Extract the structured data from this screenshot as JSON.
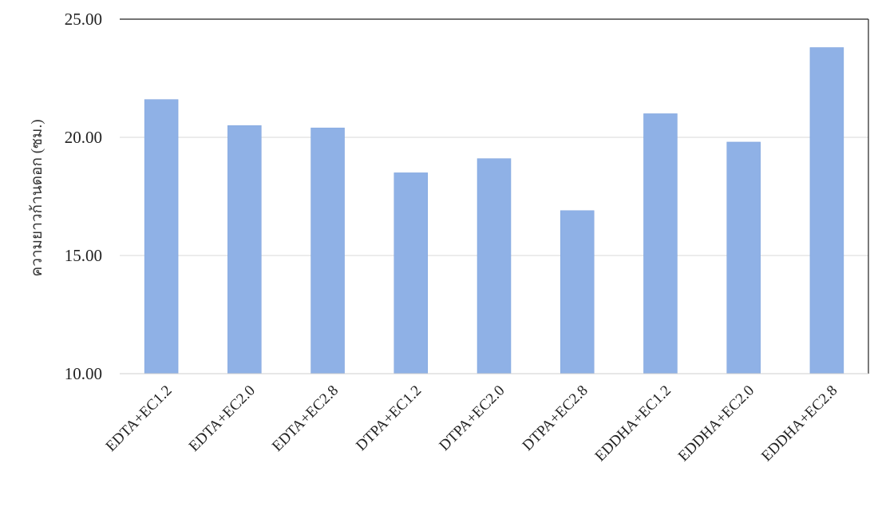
{
  "chart_data": {
    "type": "bar",
    "title": "",
    "xlabel": "",
    "ylabel": "ความยาวก้านดอก (ซม.)",
    "ylim": [
      10,
      25
    ],
    "yticks": [
      "10.00",
      "15.00",
      "20.00",
      "25.00"
    ],
    "grid": true,
    "legend": "none",
    "categories": [
      "EDTA+EC1.2",
      "EDTA+EC2.0",
      "EDTA+EC2.8",
      "DTPA+EC1.2",
      "DTPA+EC2.0",
      "DTPA+EC2.8",
      "EDDHA+EC1.2",
      "EDDHA+EC2.0",
      "EDDHA+EC2.8"
    ],
    "values": [
      21.6,
      20.5,
      20.4,
      18.5,
      19.1,
      16.9,
      21.0,
      19.8,
      23.8
    ],
    "colors": {
      "bar": "#8fb1e6",
      "bar_edge": "#7ea3dc",
      "axis": "#222222",
      "grid": "#d9d9d9"
    }
  }
}
